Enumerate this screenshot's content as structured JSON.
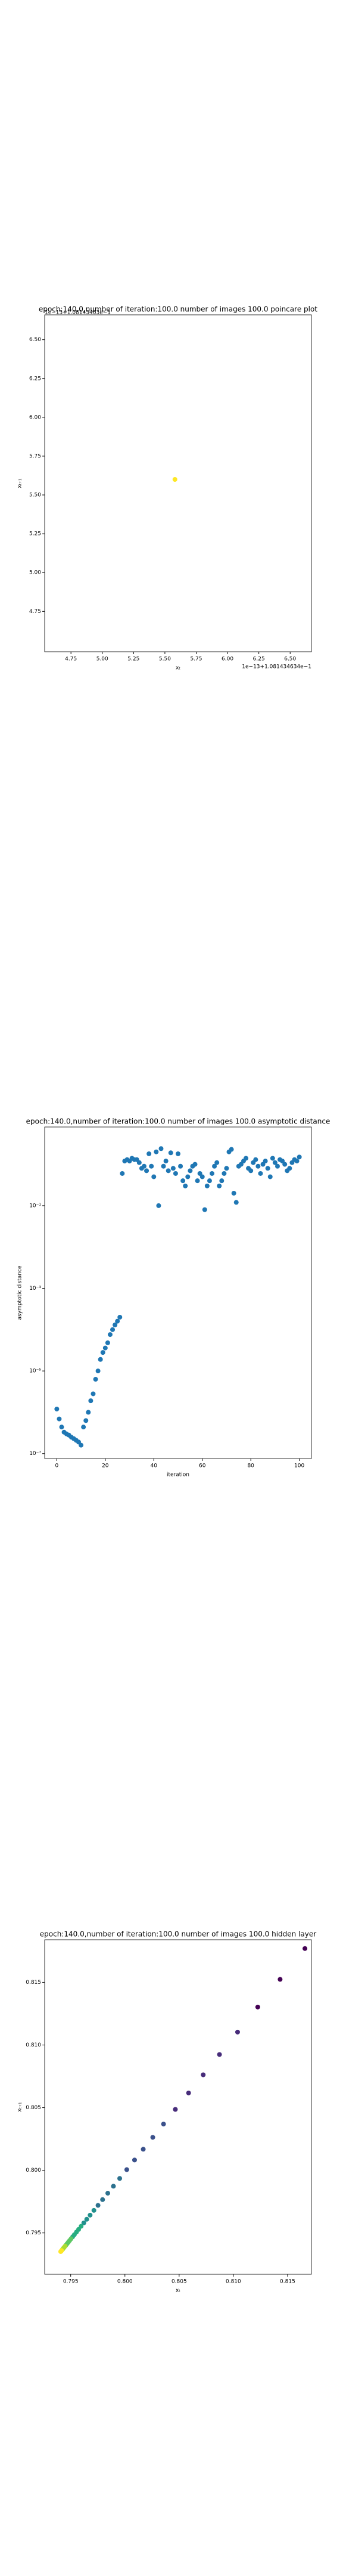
{
  "chart_data": [
    {
      "type": "scatter",
      "title": "epoch:140.0,number of iteration:100.0 number of images 100.0 poincare plot",
      "x_label": "xₜ",
      "y_label": "xₜ₊₁",
      "x_offset": "1e−13+1.081434634e−1",
      "y_offset": "1e−13+1.08143463e−1",
      "x": [
        5.58
      ],
      "series": [
        {
          "color": "#fde725",
          "values": [
            5.6
          ]
        }
      ],
      "xlim": [
        4.54,
        6.67
      ],
      "ylim": [
        4.49,
        6.66
      ],
      "xticks": [
        {
          "value": 4.75,
          "label": "4.75"
        },
        {
          "value": 5,
          "label": "5.00"
        },
        {
          "value": 5.25,
          "label": "5.25"
        },
        {
          "value": 5.5,
          "label": "5.50"
        },
        {
          "value": 5.75,
          "label": "5.75"
        },
        {
          "value": 6,
          "label": "6.00"
        },
        {
          "value": 6.25,
          "label": "6.25"
        },
        {
          "value": 6.5,
          "label": "6.50"
        }
      ],
      "yticks": [
        {
          "value": 4.75,
          "label": "4.75"
        },
        {
          "value": 5,
          "label": "5.00"
        },
        {
          "value": 5.25,
          "label": "5.25"
        },
        {
          "value": 5.5,
          "label": "5.50"
        },
        {
          "value": 5.75,
          "label": "5.75"
        },
        {
          "value": 6,
          "label": "6.00"
        },
        {
          "value": 6.25,
          "label": "6.25"
        },
        {
          "value": 6.5,
          "label": "6.50"
        }
      ]
    },
    {
      "type": "scatter",
      "title": "epoch:140.0,number of iteration:100.0  number of images 100.0 asymptotic distance",
      "x_label": "iteration",
      "y_label": "asymptotic distance",
      "log_y": true,
      "x": [
        0,
        1,
        2,
        3,
        4,
        5,
        6,
        7,
        8,
        9,
        10,
        11,
        12,
        13,
        14,
        15,
        16,
        17,
        18,
        19,
        20,
        21,
        22,
        23,
        24,
        25,
        26,
        27,
        28,
        29,
        30,
        31,
        32,
        33,
        34,
        35,
        36,
        37,
        38,
        39,
        40,
        41,
        42,
        43,
        44,
        45,
        46,
        47,
        48,
        49,
        50,
        51,
        52,
        53,
        54,
        55,
        56,
        57,
        58,
        59,
        60,
        61,
        62,
        63,
        64,
        65,
        66,
        67,
        68,
        69,
        70,
        71,
        72,
        73,
        74,
        75,
        76,
        77,
        78,
        79,
        80,
        81,
        82,
        83,
        84,
        85,
        86,
        87,
        88,
        89,
        90,
        91,
        92,
        93,
        94,
        95,
        96,
        97,
        98,
        99,
        100
      ],
      "series": [
        {
          "color": "#1f77b4",
          "values": [
            1.2e-06,
            6.9e-07,
            4.4e-07,
            3.3e-07,
            3e-07,
            2.8e-07,
            2.5e-07,
            2.3e-07,
            2.1e-07,
            1.9e-07,
            1.6e-07,
            4.4e-07,
            6.3e-07,
            1e-06,
            1.9e-06,
            2.8e-06,
            6.3e-06,
            1e-05,
            1.9e-05,
            2.8e-05,
            3.6e-05,
            4.8e-05,
            7.6e-05,
            0.0001,
            0.00013,
            0.00016,
            0.0002,
            0.6,
            1.2,
            1.3,
            1.2,
            1.4,
            1.3,
            1.3,
            1.1,
            0.8,
            0.9,
            0.7,
            1.8,
            0.9,
            0.5,
            2.0,
            0.1,
            2.4,
            0.9,
            1.2,
            0.7,
            1.9,
            0.8,
            0.6,
            1.8,
            0.9,
            0.4,
            0.3,
            0.5,
            0.7,
            0.9,
            1.0,
            0.4,
            0.6,
            0.5,
            0.08,
            0.3,
            0.4,
            0.6,
            0.9,
            1.1,
            0.3,
            0.4,
            0.6,
            0.8,
            2.0,
            2.3,
            0.2,
            0.12,
            0.9,
            1.0,
            1.2,
            1.4,
            0.8,
            0.7,
            1.1,
            1.3,
            0.9,
            0.6,
            1.0,
            1.2,
            0.8,
            0.5,
            1.4,
            1.1,
            0.9,
            1.3,
            1.2,
            1.0,
            0.7,
            0.8,
            1.1,
            1.3,
            1.2,
            1.5
          ]
        }
      ],
      "xlim": [
        -5,
        105
      ],
      "ylim": [
        7.6e-08,
        8
      ],
      "xticks": [
        0,
        20,
        40,
        60,
        80,
        100
      ],
      "yticks": [
        {
          "value": 1e-07,
          "label": "10⁻⁷"
        },
        {
          "value": 1e-05,
          "label": "10⁻⁵"
        },
        {
          "value": 0.001,
          "label": "10⁻³"
        },
        {
          "value": 0.1,
          "label": "10⁻¹"
        }
      ]
    },
    {
      "type": "scatter",
      "title": "epoch:140.0,number of iteration:100.0  number of images 100.0 hidden layer",
      "x_label": "xₜ",
      "y_label": "xₜ₊₁",
      "colormap": "viridis",
      "x": [
        0.8166,
        0.81431,
        0.81225,
        0.81039,
        0.80872,
        0.80722,
        0.80587,
        0.80465,
        0.80356,
        0.80257,
        0.80169,
        0.80089,
        0.80017,
        0.79952,
        0.79894,
        0.79842,
        0.79794,
        0.79752,
        0.79714,
        0.79679,
        0.79648,
        0.79621,
        0.79596,
        0.79573,
        0.79553,
        0.79534,
        0.79518,
        0.79503,
        0.7949,
        0.79478,
        0.79467,
        0.79457,
        0.79449,
        0.79441,
        0.79434,
        0.79427,
        0.79422,
        0.79416,
        0.79412,
        0.79408
      ],
      "series": [
        {
          "values": [
            0.8177,
            0.81524,
            0.81303,
            0.81103,
            0.80924,
            0.80762,
            0.80617,
            0.80486,
            0.80369,
            0.80263,
            0.80168,
            0.80082,
            0.80005,
            0.79935,
            0.79873,
            0.79817,
            0.79766,
            0.7972,
            0.7968,
            0.79642,
            0.79609,
            0.7958,
            0.79553,
            0.79528,
            0.79507,
            0.79486,
            0.79469,
            0.79453,
            0.79439,
            0.79426,
            0.79414,
            0.79403,
            0.79395,
            0.79386,
            0.79379,
            0.79371,
            0.79366,
            0.79359,
            0.79355,
            0.79351
          ]
        }
      ],
      "xlim": [
        0.7926,
        0.8172
      ],
      "ylim": [
        0.7917,
        0.8184
      ],
      "xticks": [
        0.795,
        {
          "value": 0.8,
          "label": "0.800"
        },
        0.805,
        {
          "value": 0.81,
          "label": "0.810"
        },
        0.815
      ],
      "yticks": [
        0.795,
        {
          "value": 0.8,
          "label": "0.800"
        },
        0.805,
        {
          "value": 0.81,
          "label": "0.810"
        },
        0.815
      ]
    }
  ]
}
